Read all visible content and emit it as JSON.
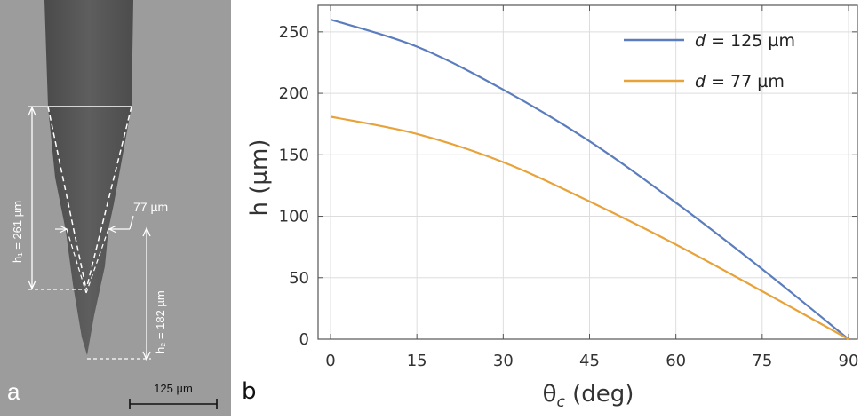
{
  "panel_a": {
    "label": "a",
    "h1_label": "h₁ = 261 µm",
    "h2_label": "h₂ = 182 µm",
    "width_label": "77 µm",
    "scale_bar_label": "125 µm"
  },
  "panel_b_label": "b",
  "chart_data": {
    "type": "line",
    "xlabel": "θc (deg)",
    "ylabel": "h (µm)",
    "xlim": [
      0,
      90
    ],
    "ylim": [
      0,
      260
    ],
    "xticks": [
      0,
      15,
      30,
      45,
      60,
      75,
      90
    ],
    "yticks": [
      0,
      50,
      100,
      150,
      200,
      250
    ],
    "grid": true,
    "legend_position": "top-right",
    "series": [
      {
        "name": "d = 125 µm",
        "color": "#5b7dbd",
        "x": [
          0,
          15,
          30,
          45,
          60,
          75,
          90
        ],
        "y": [
          260,
          238,
          203,
          161,
          111,
          57,
          0
        ]
      },
      {
        "name": "d = 77 µm",
        "color": "#e8a23a",
        "x": [
          0,
          15,
          30,
          45,
          60,
          75,
          90
        ],
        "y": [
          181,
          167,
          144,
          112,
          77,
          39,
          0
        ]
      }
    ]
  }
}
